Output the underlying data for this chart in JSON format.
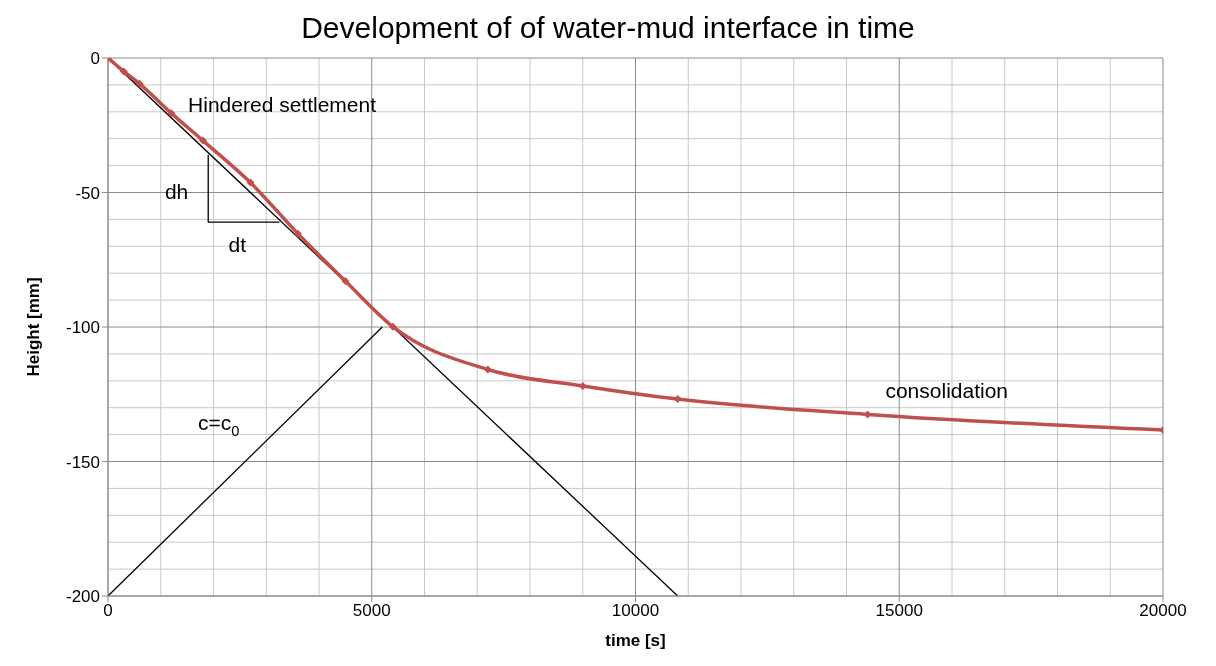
{
  "chart_data": {
    "type": "line",
    "title": "Development of of water-mud interface in time",
    "xlabel": "time [s]",
    "ylabel": "Height [mm]",
    "xlim": [
      0,
      20000
    ],
    "xticks": [
      0,
      5000,
      10000,
      15000,
      20000
    ],
    "ylim": [
      -200,
      0
    ],
    "yticks": [
      -200,
      -150,
      -100,
      -50,
      0
    ],
    "grid": true,
    "series": [
      {
        "color": "#000000",
        "marker": "none",
        "x": [
          0,
          10800
        ],
        "values": [
          0,
          -200
        ]
      },
      {
        "color": "#000000",
        "marker": "none",
        "x": [
          0,
          5200
        ],
        "values": [
          -200,
          -100
        ]
      },
      {
        "color": "#000000",
        "marker": "none",
        "x": [
          1900,
          1900,
          3250
        ],
        "values": [
          -36,
          -61,
          -61
        ]
      },
      {
        "color": "#c0504d",
        "marker": "diamond",
        "x": [
          0,
          300,
          600,
          1200,
          1800,
          2700,
          3600,
          4500,
          5400,
          7200,
          9000,
          10800,
          14400,
          20000
        ],
        "values": [
          0,
          -5,
          -9.6,
          -20.5,
          -30.7,
          -46.3,
          -65.3,
          -82.9,
          -99.9,
          -115.8,
          -121.9,
          -126.8,
          -132.5,
          -138.3
        ]
      }
    ],
    "annotations": [
      "Hindered settlement",
      "dh",
      "dt",
      "c=c$_{0}$",
      "consolidation"
    ]
  }
}
